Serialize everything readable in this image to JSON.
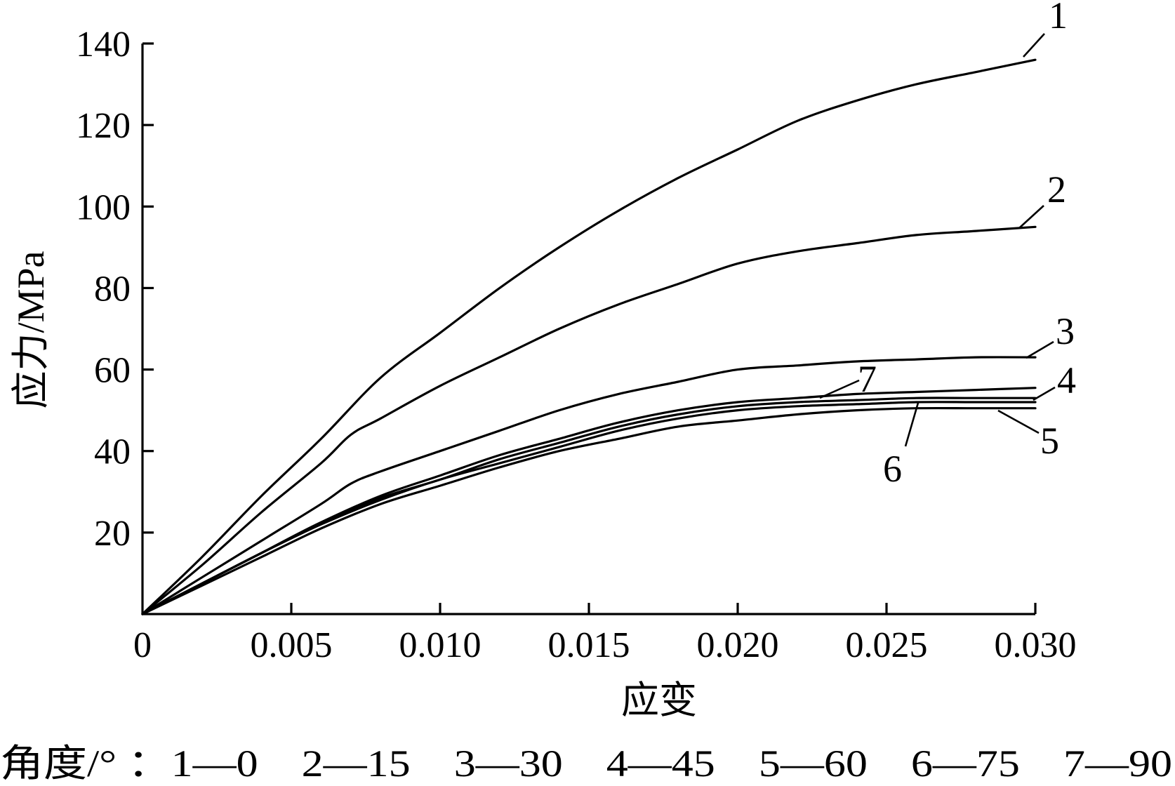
{
  "chart_data": {
    "type": "line",
    "xlabel": "应变",
    "ylabel": "应力/MPa",
    "xlim": [
      0,
      0.03
    ],
    "ylim": [
      0,
      140
    ],
    "x_ticks": [
      0,
      0.005,
      0.01,
      0.015,
      0.02,
      0.025,
      0.03
    ],
    "x_tick_labels": [
      "0",
      "0.005",
      "0.010",
      "0.015",
      "0.020",
      "0.025",
      "0.030"
    ],
    "y_ticks": [
      20,
      40,
      60,
      80,
      100,
      120,
      140
    ],
    "y_tick_labels": [
      "20",
      "40",
      "60",
      "80",
      "100",
      "120",
      "140"
    ],
    "grid": false,
    "series": [
      {
        "name": "1",
        "x": [
          0,
          0.002,
          0.004,
          0.006,
          0.008,
          0.01,
          0.012,
          0.014,
          0.016,
          0.018,
          0.02,
          0.022,
          0.024,
          0.026,
          0.028,
          0.03
        ],
        "y": [
          0,
          14,
          29,
          43,
          58,
          69,
          80,
          90,
          99,
          107,
          114,
          121,
          126,
          130,
          133,
          136
        ]
      },
      {
        "name": "2",
        "x": [
          0,
          0.002,
          0.004,
          0.006,
          0.007,
          0.008,
          0.01,
          0.012,
          0.014,
          0.016,
          0.018,
          0.02,
          0.022,
          0.024,
          0.026,
          0.028,
          0.03
        ],
        "y": [
          0,
          12,
          25,
          37,
          44,
          48,
          56,
          63,
          70,
          76,
          81,
          86,
          89,
          91,
          93,
          94,
          95
        ]
      },
      {
        "name": "3",
        "x": [
          0,
          0.002,
          0.004,
          0.006,
          0.007,
          0.008,
          0.01,
          0.012,
          0.014,
          0.016,
          0.018,
          0.02,
          0.022,
          0.024,
          0.026,
          0.028,
          0.03
        ],
        "y": [
          0,
          9,
          18,
          27,
          32,
          35,
          40,
          45,
          50,
          54,
          57,
          60,
          61,
          62,
          62.5,
          63,
          63
        ]
      },
      {
        "name": "4",
        "x": [
          0,
          0.002,
          0.004,
          0.006,
          0.008,
          0.01,
          0.012,
          0.014,
          0.016,
          0.018,
          0.02,
          0.022,
          0.024,
          0.026,
          0.028,
          0.03
        ],
        "y": [
          0,
          7.5,
          15,
          22.5,
          28.5,
          33,
          38,
          42,
          46,
          49,
          51,
          52,
          52.5,
          53,
          53,
          53
        ]
      },
      {
        "name": "5",
        "x": [
          0,
          0.002,
          0.004,
          0.006,
          0.008,
          0.01,
          0.012,
          0.014,
          0.016,
          0.018,
          0.02,
          0.022,
          0.024,
          0.026,
          0.028,
          0.03
        ],
        "y": [
          0,
          7,
          14,
          21,
          27,
          31.5,
          36,
          40,
          43,
          46,
          47.5,
          49,
          50,
          50.5,
          50.5,
          50.5
        ]
      },
      {
        "name": "6",
        "x": [
          0,
          0.002,
          0.004,
          0.006,
          0.008,
          0.01,
          0.012,
          0.014,
          0.016,
          0.018,
          0.02,
          0.022,
          0.024,
          0.026,
          0.028,
          0.03
        ],
        "y": [
          0,
          7.5,
          15,
          22,
          28,
          33,
          37,
          41,
          45,
          48,
          50,
          51,
          51.5,
          52,
          52,
          52
        ]
      },
      {
        "name": "7",
        "x": [
          0,
          0.002,
          0.004,
          0.006,
          0.008,
          0.01,
          0.012,
          0.014,
          0.016,
          0.018,
          0.02,
          0.022,
          0.024,
          0.026,
          0.028,
          0.03
        ],
        "y": [
          0,
          7.5,
          15,
          22.5,
          29,
          34,
          39,
          43,
          47,
          50,
          52,
          53,
          54,
          54.5,
          55,
          55.5
        ]
      }
    ],
    "annotations": [
      "1",
      "2",
      "3",
      "4",
      "5",
      "6",
      "7"
    ],
    "legend_caption": "角度/° ：1—0　2—15　3—30　4—45　5—60　6—75　7—90"
  }
}
